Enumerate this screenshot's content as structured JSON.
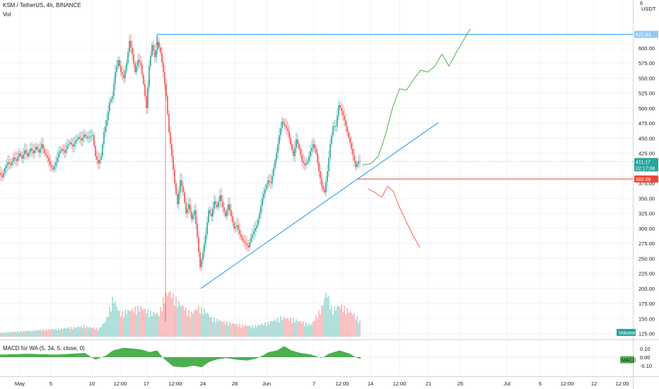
{
  "header": {
    "title": "KSM / TetherUS, 4h, BINANCE",
    "volume_label": "Vol",
    "currency": "USDT",
    "scale_exponent": "6"
  },
  "macd_panel": {
    "label": "MACD for WA (5, 34, 5, close, 0)",
    "tag": "MACD",
    "ticks": [
      "0.10",
      "0.00",
      "-0.10"
    ]
  },
  "volume_tag": "Volume",
  "price_tags": {
    "resistance": "622.83",
    "current_price": "411.17",
    "countdown": "02:17:08",
    "support": "382.08"
  },
  "colors": {
    "up": "#26a69a",
    "down": "#ef5350",
    "trendline": "#2196f3",
    "bull_path": "#4caf50",
    "bear_path": "#f44336",
    "macd": "#4caf50"
  },
  "chart_data": {
    "type": "candlestick",
    "symbol": "KSM/USDT",
    "interval": "4h",
    "y_ticks": [
      125,
      150,
      175,
      200,
      225,
      250,
      275,
      300,
      325,
      350,
      375,
      425,
      450,
      475,
      500,
      525,
      550,
      575,
      600
    ],
    "x_ticks": [
      "May",
      "5",
      "10",
      "12:00",
      "17",
      "12:00",
      "24",
      "28",
      "Jun",
      "7",
      "12:00",
      "14",
      "12:00",
      "21",
      "25",
      "Jul",
      "5",
      "12:00",
      "12",
      "12:00"
    ],
    "ylim": [
      115,
      680
    ],
    "price_path": [
      [
        0,
        392
      ],
      [
        4,
        385
      ],
      [
        8,
        400
      ],
      [
        12,
        410
      ],
      [
        16,
        405
      ],
      [
        20,
        418
      ],
      [
        24,
        412
      ],
      [
        28,
        425
      ],
      [
        32,
        416
      ],
      [
        36,
        430
      ],
      [
        40,
        420
      ],
      [
        44,
        433
      ],
      [
        48,
        425
      ],
      [
        52,
        436
      ],
      [
        56,
        426
      ],
      [
        60,
        440
      ],
      [
        64,
        425
      ],
      [
        68,
        418
      ],
      [
        72,
        405
      ],
      [
        76,
        398
      ],
      [
        80,
        410
      ],
      [
        84,
        425
      ],
      [
        88,
        432
      ],
      [
        92,
        426
      ],
      [
        96,
        438
      ],
      [
        100,
        443
      ],
      [
        104,
        436
      ],
      [
        108,
        446
      ],
      [
        112,
        452
      ],
      [
        116,
        446
      ],
      [
        120,
        456
      ],
      [
        124,
        450
      ],
      [
        128,
        453
      ],
      [
        132,
        455
      ],
      [
        136,
        420
      ],
      [
        140,
        408
      ],
      [
        144,
        420
      ],
      [
        148,
        460
      ],
      [
        152,
        480
      ],
      [
        156,
        510
      ],
      [
        160,
        520
      ],
      [
        164,
        560
      ],
      [
        168,
        580
      ],
      [
        172,
        560
      ],
      [
        176,
        550
      ],
      [
        180,
        575
      ],
      [
        184,
        612
      ],
      [
        188,
        590
      ],
      [
        192,
        560
      ],
      [
        196,
        580
      ],
      [
        200,
        572
      ],
      [
        204,
        540
      ],
      [
        208,
        500
      ],
      [
        212,
        570
      ],
      [
        216,
        605
      ],
      [
        220,
        585
      ],
      [
        224,
        610
      ],
      [
        228,
        592
      ],
      [
        232,
        560
      ],
      [
        236,
        520
      ],
      [
        240,
        460
      ],
      [
        244,
        420
      ],
      [
        248,
        375
      ],
      [
        252,
        340
      ],
      [
        256,
        380
      ],
      [
        260,
        360
      ],
      [
        264,
        325
      ],
      [
        268,
        340
      ],
      [
        272,
        315
      ],
      [
        276,
        330
      ],
      [
        280,
        285
      ],
      [
        284,
        235
      ],
      [
        288,
        260
      ],
      [
        292,
        290
      ],
      [
        296,
        330
      ],
      [
        300,
        320
      ],
      [
        304,
        345
      ],
      [
        308,
        335
      ],
      [
        312,
        355
      ],
      [
        316,
        335
      ],
      [
        320,
        320
      ],
      [
        324,
        340
      ],
      [
        328,
        320
      ],
      [
        332,
        300
      ],
      [
        336,
        305
      ],
      [
        340,
        290
      ],
      [
        344,
        280
      ],
      [
        348,
        275
      ],
      [
        352,
        268
      ],
      [
        356,
        285
      ],
      [
        360,
        295
      ],
      [
        364,
        305
      ],
      [
        368,
        325
      ],
      [
        372,
        350
      ],
      [
        376,
        365
      ],
      [
        380,
        380
      ],
      [
        384,
        375
      ],
      [
        388,
        400
      ],
      [
        392,
        425
      ],
      [
        396,
        455
      ],
      [
        400,
        478
      ],
      [
        404,
        470
      ],
      [
        408,
        462
      ],
      [
        412,
        440
      ],
      [
        416,
        420
      ],
      [
        420,
        448
      ],
      [
        424,
        432
      ],
      [
        428,
        412
      ],
      [
        432,
        405
      ],
      [
        436,
        412
      ],
      [
        440,
        428
      ],
      [
        444,
        440
      ],
      [
        448,
        425
      ],
      [
        452,
        395
      ],
      [
        456,
        370
      ],
      [
        460,
        360
      ],
      [
        464,
        395
      ],
      [
        468,
        440
      ],
      [
        472,
        470
      ],
      [
        476,
        470
      ],
      [
        480,
        505
      ],
      [
        484,
        495
      ],
      [
        488,
        480
      ],
      [
        492,
        460
      ],
      [
        496,
        442
      ],
      [
        500,
        422
      ],
      [
        504,
        402
      ],
      [
        508,
        412
      ],
      [
        510,
        411
      ]
    ],
    "volume_path": [
      [
        0,
        6
      ],
      [
        40,
        9
      ],
      [
        80,
        12
      ],
      [
        120,
        16
      ],
      [
        140,
        12
      ],
      [
        150,
        25
      ],
      [
        160,
        60
      ],
      [
        170,
        35
      ],
      [
        180,
        40
      ],
      [
        200,
        45
      ],
      [
        210,
        38
      ],
      [
        225,
        35
      ],
      [
        232,
        60
      ],
      [
        240,
        70
      ],
      [
        250,
        55
      ],
      [
        260,
        45
      ],
      [
        270,
        35
      ],
      [
        280,
        45
      ],
      [
        290,
        40
      ],
      [
        300,
        28
      ],
      [
        320,
        22
      ],
      [
        340,
        18
      ],
      [
        360,
        16
      ],
      [
        380,
        22
      ],
      [
        400,
        30
      ],
      [
        420,
        25
      ],
      [
        440,
        18
      ],
      [
        455,
        45
      ],
      [
        462,
        70
      ],
      [
        470,
        40
      ],
      [
        480,
        48
      ],
      [
        490,
        42
      ],
      [
        500,
        35
      ],
      [
        510,
        22
      ]
    ],
    "macd_path": [
      [
        0,
        0.03
      ],
      [
        40,
        0.04
      ],
      [
        80,
        0.03
      ],
      [
        120,
        0.05
      ],
      [
        135,
        -0.03
      ],
      [
        150,
        0.02
      ],
      [
        160,
        0.08
      ],
      [
        175,
        0.11
      ],
      [
        190,
        0.1
      ],
      [
        200,
        0.09
      ],
      [
        212,
        0.06
      ],
      [
        222,
        0.08
      ],
      [
        232,
        -0.02
      ],
      [
        245,
        -0.11
      ],
      [
        260,
        -0.12
      ],
      [
        275,
        -0.1
      ],
      [
        285,
        -0.12
      ],
      [
        295,
        -0.06
      ],
      [
        305,
        -0.03
      ],
      [
        320,
        -0.01
      ],
      [
        335,
        -0.03
      ],
      [
        350,
        -0.04
      ],
      [
        365,
        -0.01
      ],
      [
        380,
        0.06
      ],
      [
        392,
        0.08
      ],
      [
        402,
        0.13
      ],
      [
        412,
        0.08
      ],
      [
        425,
        0.05
      ],
      [
        440,
        0.03
      ],
      [
        455,
        -0.01
      ],
      [
        465,
        0.04
      ],
      [
        480,
        0.08
      ],
      [
        495,
        0.04
      ],
      [
        505,
        -0.01
      ],
      [
        510,
        -0.02
      ]
    ],
    "annotations": {
      "resistance_level": 622.83,
      "support_level": 382.08,
      "current_price": 411.17,
      "trendline": [
        [
          284,
          200
        ],
        [
          620,
          476
        ]
      ],
      "bull_projection": [
        [
          512,
          405
        ],
        [
          525,
          408
        ],
        [
          535,
          420
        ],
        [
          545,
          455
        ],
        [
          555,
          500
        ],
        [
          565,
          532
        ],
        [
          575,
          530
        ],
        [
          585,
          548
        ],
        [
          595,
          563
        ],
        [
          605,
          560
        ],
        [
          615,
          570
        ],
        [
          625,
          590
        ],
        [
          635,
          570
        ],
        [
          645,
          592
        ],
        [
          655,
          612
        ],
        [
          665,
          632
        ]
      ],
      "bear_projection": [
        [
          520,
          366
        ],
        [
          530,
          360
        ],
        [
          540,
          352
        ],
        [
          548,
          370
        ],
        [
          556,
          362
        ],
        [
          565,
          335
        ],
        [
          575,
          310
        ],
        [
          585,
          286
        ],
        [
          594,
          268
        ]
      ]
    }
  }
}
